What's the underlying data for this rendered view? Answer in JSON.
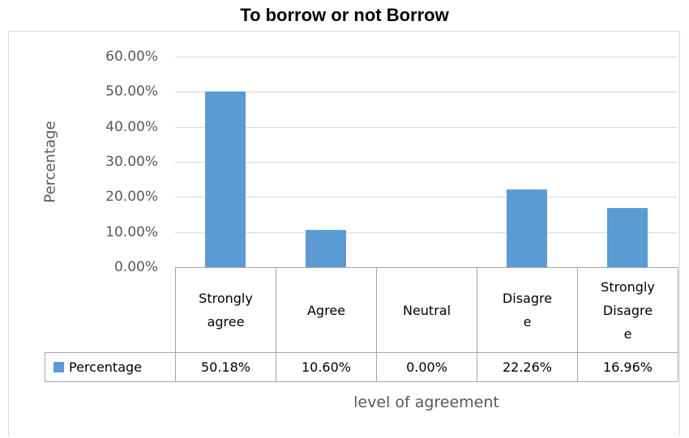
{
  "chart_data": {
    "type": "bar",
    "title": "To borrow or not Borrow",
    "xlabel": "level of agreement",
    "ylabel": "Percentage",
    "ylim": [
      0,
      60
    ],
    "yticks": [
      "0.00%",
      "10.00%",
      "20.00%",
      "30.00%",
      "40.00%",
      "50.00%",
      "60.00%"
    ],
    "categories": [
      [
        "Strongly",
        "agree"
      ],
      [
        "Agree"
      ],
      [
        "Neutral"
      ],
      [
        "Disagre",
        "e"
      ],
      [
        "Strongly",
        "Disagre",
        "e"
      ]
    ],
    "series": [
      {
        "name": "Percentage",
        "values": [
          50.18,
          10.6,
          0.0,
          22.26,
          16.96
        ],
        "labels": [
          "50.18%",
          "10.60%",
          "0.00%",
          "22.26%",
          "16.96%"
        ],
        "color": "#5b9bd5"
      }
    ],
    "grid": true,
    "legend": "data-table"
  }
}
